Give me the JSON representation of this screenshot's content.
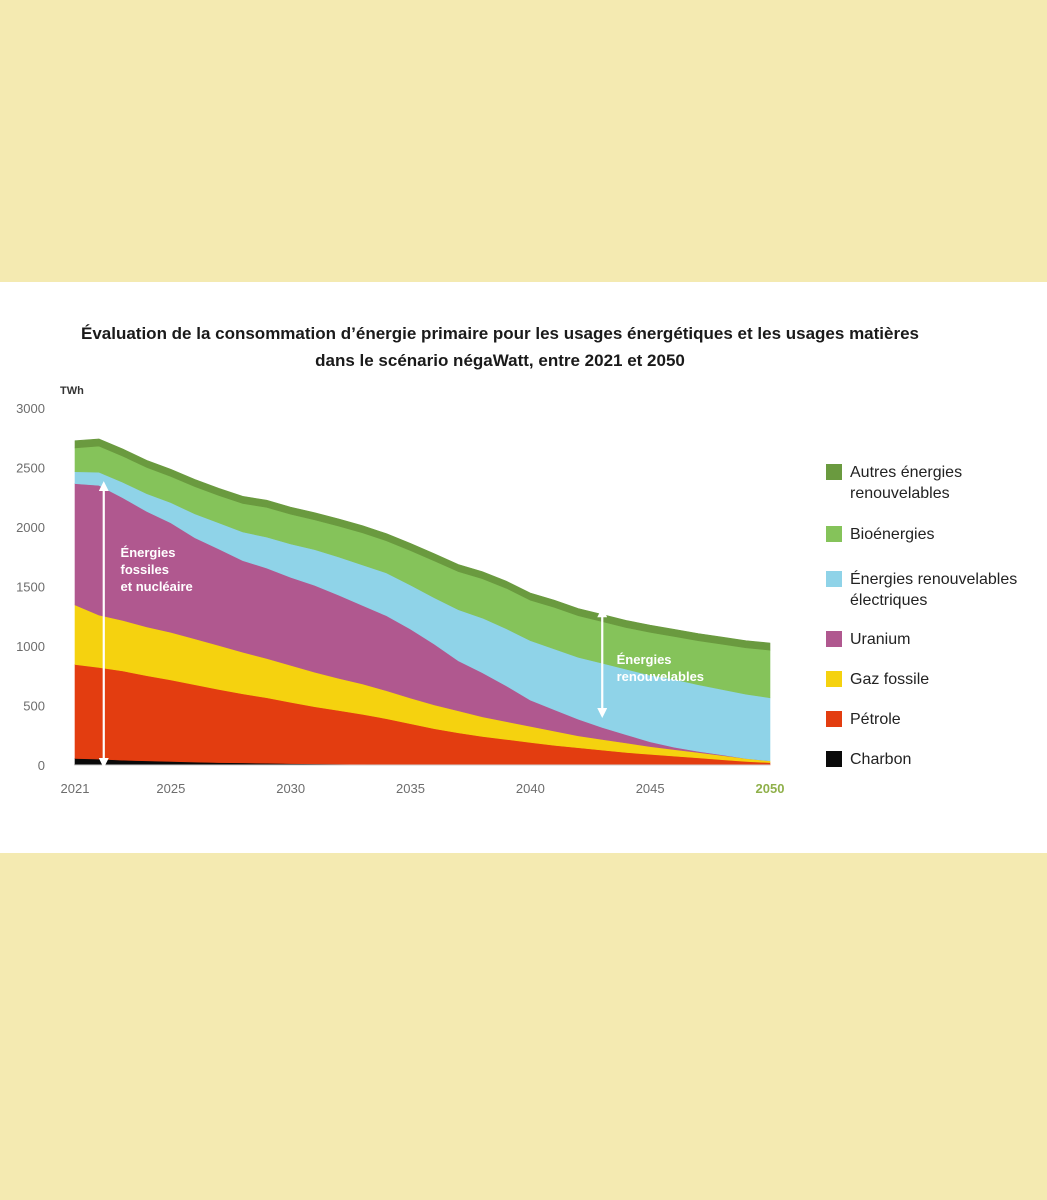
{
  "chart_data": {
    "type": "area",
    "stacked": true,
    "title": "Évaluation de la consommation d’énergie primaire pour les usages énergétiques et les usages matières",
    "subtitle": "dans le scénario négaWatt, entre 2021 et 2050",
    "ylabel": "TWh",
    "ylim": [
      0,
      3000
    ],
    "yticks": [
      0,
      500,
      1000,
      1500,
      2000,
      2500,
      3000
    ],
    "xlim": [
      2021,
      2050
    ],
    "xticks": [
      "2021",
      "2025",
      "2030",
      "2035",
      "2040",
      "2045",
      "2050"
    ],
    "x": [
      2021,
      2022,
      2023,
      2024,
      2025,
      2026,
      2027,
      2028,
      2029,
      2030,
      2031,
      2032,
      2033,
      2034,
      2035,
      2036,
      2037,
      2038,
      2039,
      2040,
      2041,
      2042,
      2043,
      2044,
      2045,
      2046,
      2047,
      2048,
      2049,
      2050
    ],
    "series": [
      {
        "name": "Charbon",
        "color": "#0a0a0a",
        "values": [
          55,
          50,
          40,
          35,
          30,
          25,
          20,
          18,
          15,
          12,
          10,
          8,
          6,
          4,
          2,
          0,
          0,
          0,
          0,
          0,
          0,
          0,
          0,
          0,
          0,
          0,
          0,
          0,
          0,
          0
        ]
      },
      {
        "name": "Pétrole",
        "color": "#e33d10",
        "values": [
          790,
          770,
          750,
          715,
          685,
          650,
          615,
          580,
          550,
          515,
          480,
          450,
          420,
          385,
          345,
          305,
          270,
          240,
          215,
          190,
          165,
          145,
          125,
          105,
          90,
          75,
          60,
          45,
          30,
          20
        ]
      },
      {
        "name": "Gaz fossile",
        "color": "#f5d20f",
        "values": [
          500,
          440,
          425,
          410,
          400,
          385,
          370,
          350,
          330,
          310,
          290,
          270,
          255,
          235,
          215,
          200,
          185,
          165,
          150,
          135,
          120,
          100,
          90,
          80,
          65,
          55,
          45,
          35,
          25,
          15
        ]
      },
      {
        "name": "Uranium",
        "color": "#b0588f",
        "values": [
          1020,
          1090,
          1030,
          970,
          920,
          850,
          810,
          770,
          760,
          740,
          730,
          700,
          660,
          630,
          580,
          510,
          420,
          370,
          300,
          220,
          180,
          140,
          100,
          70,
          40,
          20,
          10,
          5,
          0,
          0
        ]
      },
      {
        "name": "Énergies renouvelables\nélectriques",
        "color": "#8fd3e8",
        "values": [
          100,
          110,
          130,
          150,
          170,
          200,
          220,
          240,
          260,
          280,
          300,
          320,
          340,
          360,
          370,
          390,
          430,
          460,
          480,
          500,
          510,
          520,
          540,
          550,
          560,
          570,
          560,
          550,
          540,
          530
        ]
      },
      {
        "name": "Bioénergies",
        "color": "#85c35a",
        "values": [
          200,
          220,
          220,
          220,
          220,
          230,
          230,
          240,
          250,
          250,
          250,
          260,
          270,
          270,
          290,
          310,
          320,
          330,
          340,
          340,
          350,
          350,
          350,
          350,
          360,
          360,
          370,
          380,
          390,
          400
        ]
      },
      {
        "name": "Autres énergies\nrenouvelables",
        "color": "#6a9a3f",
        "values": [
          60,
          60,
          60,
          60,
          60,
          60,
          60,
          60,
          60,
          60,
          60,
          60,
          60,
          60,
          60,
          60,
          60,
          60,
          60,
          60,
          60,
          60,
          60,
          60,
          60,
          60,
          60,
          60,
          60,
          60
        ]
      }
    ],
    "annotations": [
      {
        "text": "Énergies\nfossiles\net nucléaire"
      },
      {
        "text": "Énergies\nrenouvelables"
      }
    ],
    "highlight_xtick": "2050",
    "highlight_color": "#8fb04a",
    "legend_position": "right"
  }
}
